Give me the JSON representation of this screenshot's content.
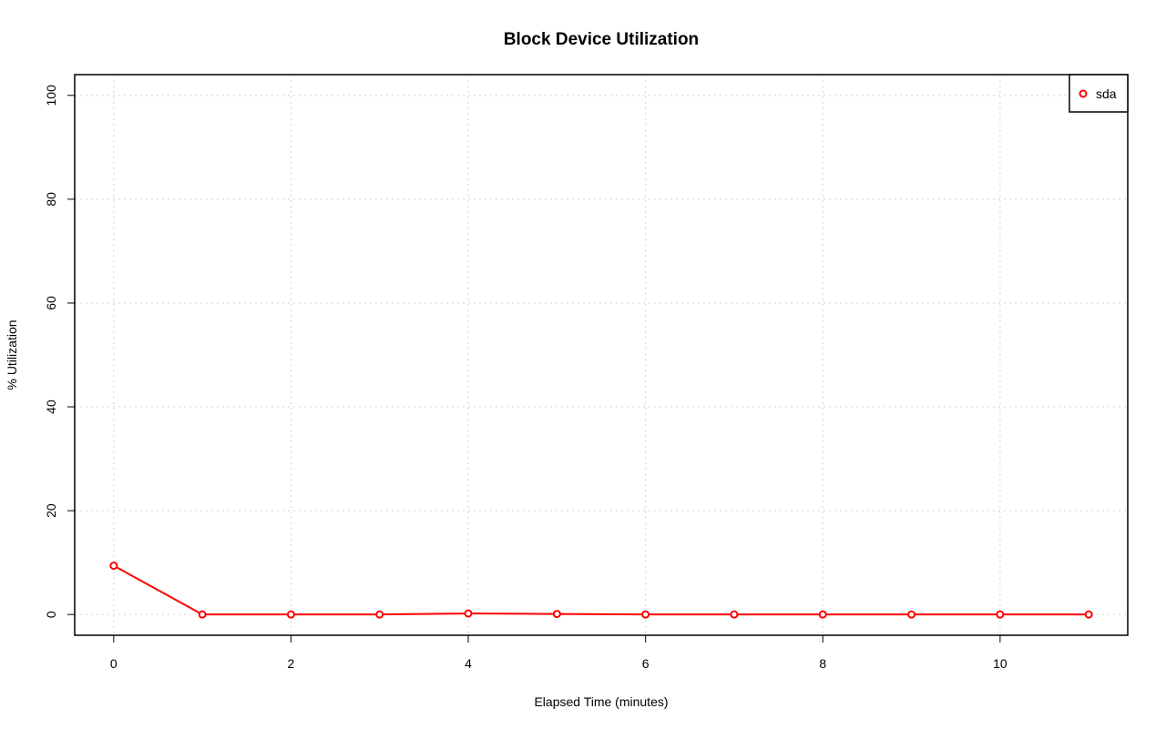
{
  "chart_data": {
    "type": "line",
    "title": "Block Device Utilization",
    "x_label": "Elapsed Time (minutes)",
    "y_label": "% Utilization",
    "x": [
      0,
      1,
      2,
      3,
      4,
      5,
      6,
      7,
      8,
      9,
      10,
      11
    ],
    "series": [
      {
        "name": "sda",
        "color": "#ff0000",
        "values": [
          9.4,
          0,
          0,
          0,
          0.2,
          0.1,
          0,
          0,
          0,
          0,
          0,
          0
        ]
      }
    ],
    "xlim": [
      -0.44,
      11.44
    ],
    "xticks": [
      0,
      2,
      4,
      6,
      8,
      10
    ],
    "ylim": [
      -4,
      104
    ],
    "yticks": [
      0,
      20,
      40,
      60,
      80,
      100
    ],
    "grid": true,
    "legend": "topright"
  }
}
